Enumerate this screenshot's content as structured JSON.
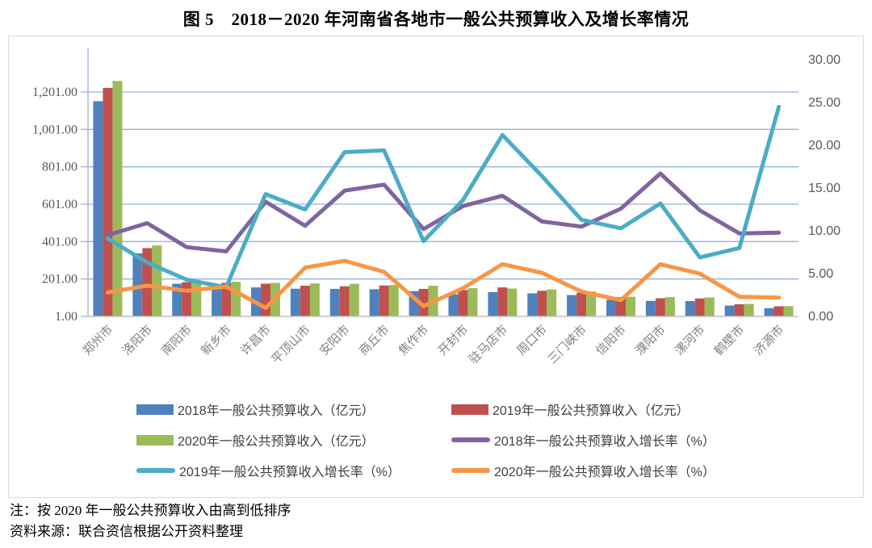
{
  "title": "图 5　2018－2020 年河南省各地市一般公共预算收入及增长率情况",
  "notes": [
    "注：按 2020 年一般公共预算收入由高到低排序",
    "资料来源：联合资信根据公开资料整理"
  ],
  "chart_data": {
    "type": "combo",
    "title": "2018-2020年河南省各地市一般公共预算收入及增长率情况",
    "categories": [
      "郑州市",
      "洛阳市",
      "南阳市",
      "新乡市",
      "许昌市",
      "平顶山市",
      "安阳市",
      "商丘市",
      "焦作市",
      "开封市",
      "驻马店市",
      "周口市",
      "三门峡市",
      "信阳市",
      "濮阳市",
      "漯河市",
      "鹤壁市",
      "济源市"
    ],
    "bar_series": [
      {
        "name": "2018年一般公共预算收入（亿元）",
        "color": "#4F81BD",
        "axis": "left",
        "values": [
          1152,
          338,
          176,
          172,
          156,
          149,
          148,
          146,
          136,
          120,
          131,
          124,
          115,
          90,
          84,
          83,
          59,
          45
        ]
      },
      {
        "name": "2019年一般公共预算收入（亿元）",
        "color": "#C0504D",
        "axis": "left",
        "values": [
          1223,
          366,
          184,
          180,
          176,
          165,
          162,
          166,
          148,
          142,
          156,
          138,
          128,
          104,
          98,
          97,
          66,
          55
        ]
      },
      {
        "name": "2020年一般公共预算收入（亿元）",
        "color": "#9BBB59",
        "axis": "left",
        "values": [
          1260,
          380,
          189,
          186,
          180,
          177,
          175,
          169,
          165,
          152,
          150,
          145,
          134,
          106,
          104,
          102,
          68,
          56
        ]
      }
    ],
    "line_series": [
      {
        "name": "2018年一般公共预算收入增长率（%）",
        "color": "#8064A2",
        "axis": "right",
        "values": [
          9.4,
          10.8,
          8.0,
          7.5,
          13.3,
          10.5,
          14.6,
          15.3,
          10.1,
          12.8,
          14.0,
          11.0,
          10.4,
          12.5,
          16.6,
          12.3,
          9.6,
          9.7
        ]
      },
      {
        "name": "2019年一般公共预算收入增长率（%）",
        "color": "#4BACC6",
        "axis": "right",
        "values": [
          9.0,
          6.2,
          4.2,
          3.3,
          14.2,
          12.4,
          19.1,
          19.3,
          8.7,
          13.5,
          21.1,
          16.3,
          11.2,
          10.2,
          13.1,
          6.8,
          7.9,
          24.4
        ]
      },
      {
        "name": "2020年一般公共预算收入增长率（%）",
        "color": "#F79646",
        "axis": "right",
        "values": [
          2.7,
          3.5,
          2.9,
          3.4,
          0.9,
          5.6,
          6.4,
          5.1,
          1.1,
          3.2,
          6.0,
          5.0,
          2.8,
          1.8,
          6.0,
          4.9,
          2.2,
          2.1
        ]
      }
    ],
    "left_axis": {
      "min": 1,
      "max": 1201,
      "tick_values": [
        1,
        201,
        401,
        601,
        801,
        1001,
        1201
      ],
      "tick_labels": [
        "1.00",
        "201.00",
        "401.00",
        "601.00",
        "801.00",
        "1,001.00",
        "1,201.00"
      ]
    },
    "right_axis": {
      "min": 0,
      "max": 30,
      "tick_values": [
        0,
        5,
        10,
        15,
        20,
        25,
        30
      ],
      "tick_labels": [
        "0.00",
        "5.00",
        "10.00",
        "15.00",
        "20.00",
        "25.00",
        "30.00"
      ]
    },
    "grid": true,
    "legend_position": "bottom",
    "styles": {
      "gridline_color": "#95B3D7",
      "axis_line_color": "#95B3D7",
      "baseline_color": "#BFBFBF",
      "left_tick_color": "#595959",
      "right_tick_color": "#595959",
      "category_label_color": "#808080"
    }
  }
}
